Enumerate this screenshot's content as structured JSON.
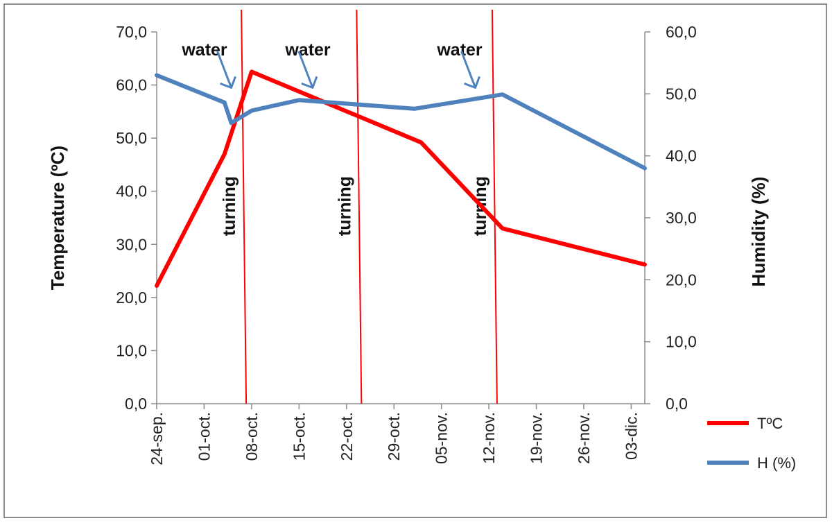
{
  "chart_data": {
    "type": "line",
    "x_dates": [
      "2009-09-24",
      "2009-10-04",
      "2009-10-05",
      "2009-10-07",
      "2009-10-08",
      "2009-10-15",
      "2009-10-22",
      "2009-11-02",
      "2009-11-14",
      "2009-12-05"
    ],
    "x_tick_labels": [
      "24-sep.",
      "01-oct.",
      "08-oct.",
      "15-oct.",
      "22-oct.",
      "29-oct.",
      "05-nov.",
      "12-nov.",
      "19-nov.",
      "26-nov.",
      "03-dic."
    ],
    "ylabel_left": "Temperature (ºC)",
    "ylabel_right": "Humidity (%)",
    "ylim_left": [
      0,
      70
    ],
    "ylim_right": [
      0,
      60
    ],
    "y_ticks_left": [
      "0,0",
      "10,0",
      "20,0",
      "30,0",
      "40,0",
      "50,0",
      "60,0",
      "70,0"
    ],
    "y_ticks_right": [
      "0,0",
      "10,0",
      "20,0",
      "30,0",
      "40,0",
      "50,0",
      "60,0"
    ],
    "series": [
      {
        "name": "TºC",
        "axis": "left",
        "color": "#ff0000",
        "points": [
          [
            "2009-09-24",
            22.2
          ],
          [
            "2009-10-04",
            47.0
          ],
          [
            "2009-10-08",
            62.5
          ],
          [
            "2009-11-02",
            49.2
          ],
          [
            "2009-11-14",
            33.0
          ],
          [
            "2009-12-05",
            26.2
          ]
        ]
      },
      {
        "name": "H (%)",
        "axis": "right",
        "color": "#4f81bd",
        "points": [
          [
            "2009-09-24",
            53.0
          ],
          [
            "2009-10-04",
            48.6
          ],
          [
            "2009-10-05",
            45.3
          ],
          [
            "2009-10-08",
            47.3
          ],
          [
            "2009-10-15",
            49.0
          ],
          [
            "2009-11-01",
            47.6
          ],
          [
            "2009-11-14",
            49.9
          ],
          [
            "2009-12-05",
            38.0
          ]
        ]
      }
    ],
    "turning_lines": [
      "2009-10-07",
      "2009-10-24",
      "2009-11-13"
    ],
    "turning_color": "#ff0000",
    "annotations": {
      "turning": "turning",
      "water": "water",
      "water_targets": [
        [
          "2009-10-05",
          51.0
        ],
        [
          "2009-10-17",
          51.0
        ],
        [
          "2009-11-10",
          51.0
        ]
      ]
    },
    "legend": {
      "position": "right"
    }
  }
}
